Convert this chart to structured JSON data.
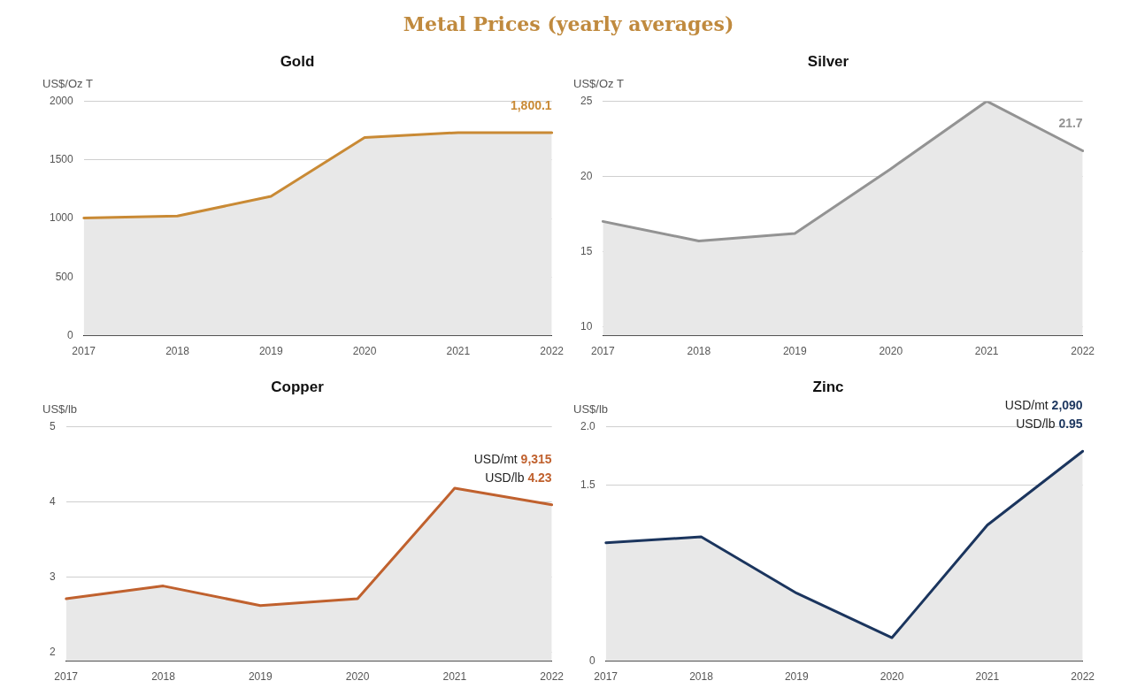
{
  "chart_data": [
    {
      "type": "other",
      "title": "Metal Prices (yearly averages)"
    },
    {
      "type": "area",
      "title": "Gold",
      "ylabel": "US$/Oz T",
      "categories": [
        "2017",
        "2018",
        "2019",
        "2020",
        "2021",
        "2022"
      ],
      "series": [
        {
          "color": "#c98a35",
          "values": [
            1004,
            1021,
            1188,
            1690,
            1732,
            1732
          ]
        }
      ],
      "ylim": [
        0,
        2000
      ],
      "yticks": [
        0,
        500,
        1000,
        1500,
        2000
      ],
      "grid": "y",
      "legend": false,
      "annotations": [
        "1,800.1"
      ]
    },
    {
      "type": "area",
      "title": "Silver",
      "ylabel": "US$/Oz T",
      "categories": [
        "2017",
        "2018",
        "2019",
        "2020",
        "2021",
        "2022"
      ],
      "series": [
        {
          "color": "#939393",
          "values": [
            17.0,
            15.7,
            16.2,
            20.5,
            25.0,
            21.7
          ]
        }
      ],
      "ylim": [
        9.4,
        25
      ],
      "yticks": [
        10,
        15,
        20,
        25
      ],
      "grid": "y",
      "legend": false,
      "annotations": [
        "21.7"
      ]
    },
    {
      "type": "area",
      "title": "Copper",
      "ylabel": "US$/lb",
      "categories": [
        "2017",
        "2018",
        "2019",
        "2020",
        "2021",
        "2022"
      ],
      "series": [
        {
          "color": "#c0612e",
          "values": [
            2.71,
            2.88,
            2.62,
            2.71,
            4.18,
            3.96
          ]
        }
      ],
      "ylim": [
        1.88,
        5
      ],
      "yticks": [
        2,
        3,
        4,
        5
      ],
      "grid": "y",
      "legend": false,
      "annotations": [
        "USD/mt 9,315",
        "USD/lb 4.23"
      ]
    },
    {
      "type": "area",
      "title": "Zinc",
      "ylabel": "US$/lb",
      "categories": [
        "2017",
        "2018",
        "2019",
        "2020",
        "2021",
        "2022"
      ],
      "series": [
        {
          "color": "#1b355e",
          "values": [
            1.01,
            1.06,
            0.58,
            0.2,
            1.16,
            1.79
          ]
        }
      ],
      "ylim": [
        0,
        2
      ],
      "yticks": [
        0,
        1.5,
        {
          "value": 2,
          "label": "2.0"
        }
      ],
      "grid": "y",
      "legend": false,
      "annotations": [
        "USD/mt 2,090",
        "USD/lb 0.95"
      ]
    }
  ]
}
